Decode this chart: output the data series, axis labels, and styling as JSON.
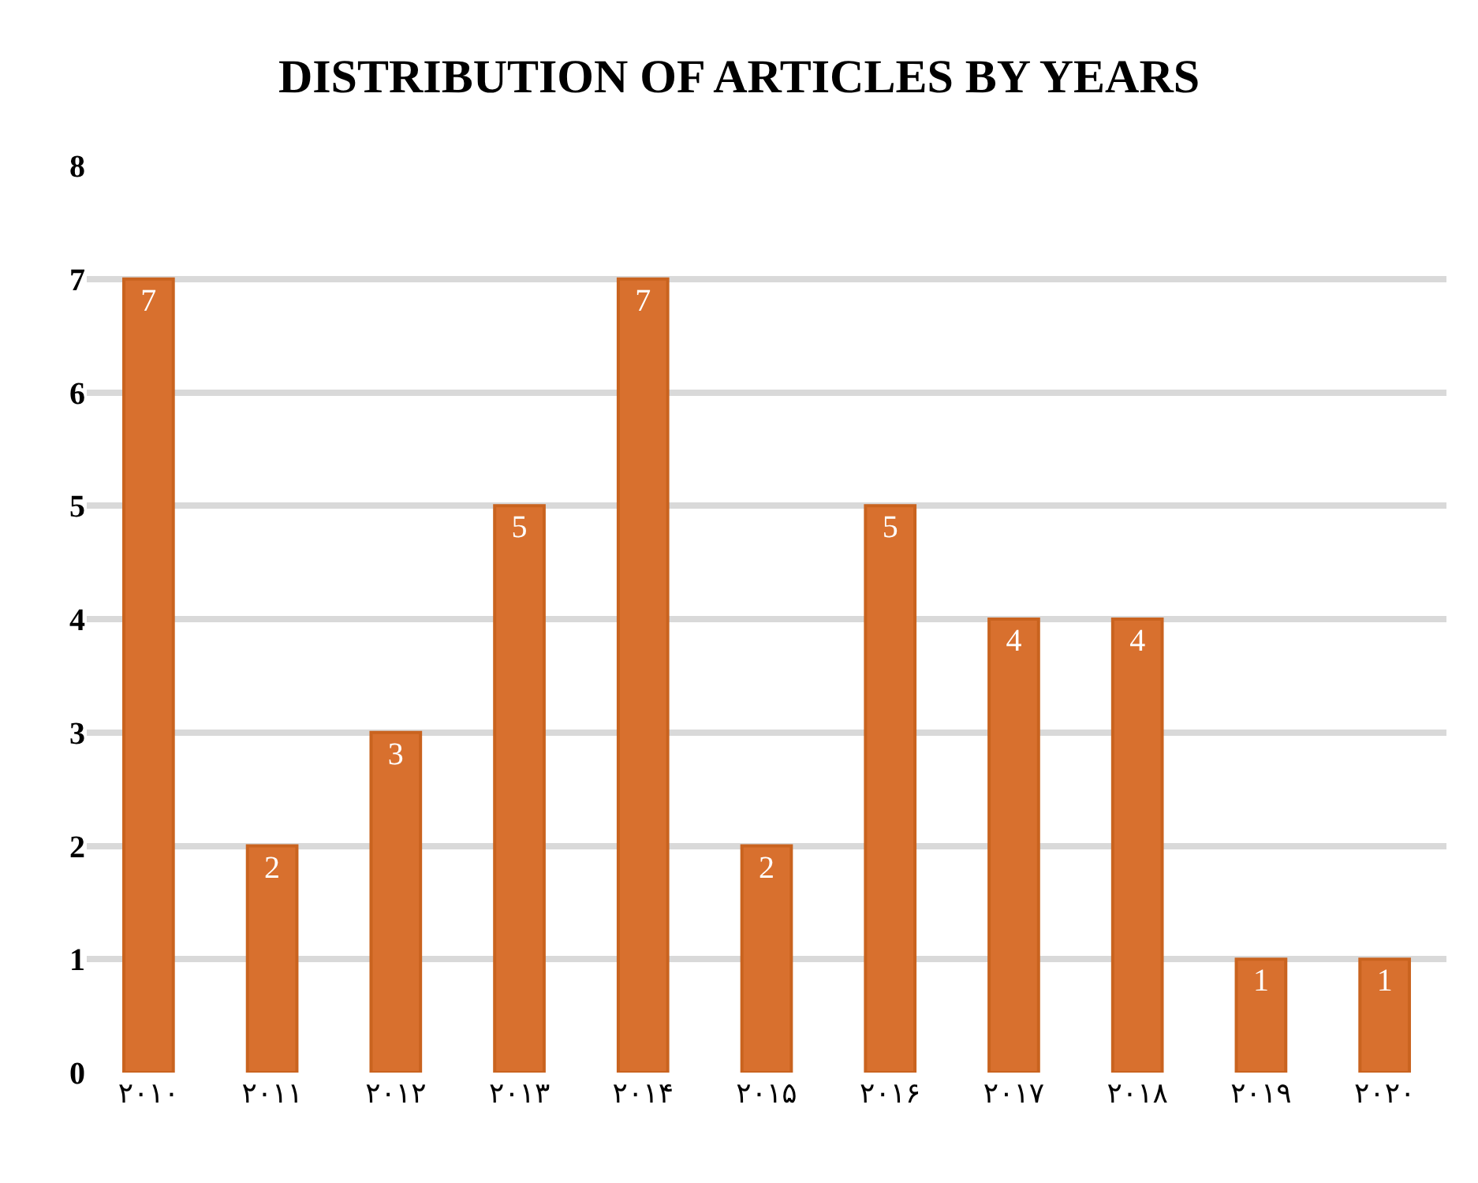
{
  "chart_data": {
    "type": "bar",
    "title": "DISTRIBUTION OF ARTICLES BY YEARS",
    "categories": [
      "۲۰۱۰",
      "۲۰۱۱",
      "۲۰۱۲",
      "۲۰۱۳",
      "۲۰۱۴",
      "۲۰۱۵",
      "۲۰۱۶",
      "۲۰۱۷",
      "۲۰۱۸",
      "۲۰۱۹",
      "۲۰۲۰"
    ],
    "values": [
      7,
      2,
      3,
      5,
      7,
      2,
      5,
      4,
      4,
      1,
      1
    ],
    "color": "#d8702e",
    "ylim": [
      0,
      8
    ],
    "yticks": [
      0,
      1,
      2,
      3,
      4,
      5,
      6,
      7,
      8
    ],
    "grid": "y",
    "data_labels": true
  }
}
